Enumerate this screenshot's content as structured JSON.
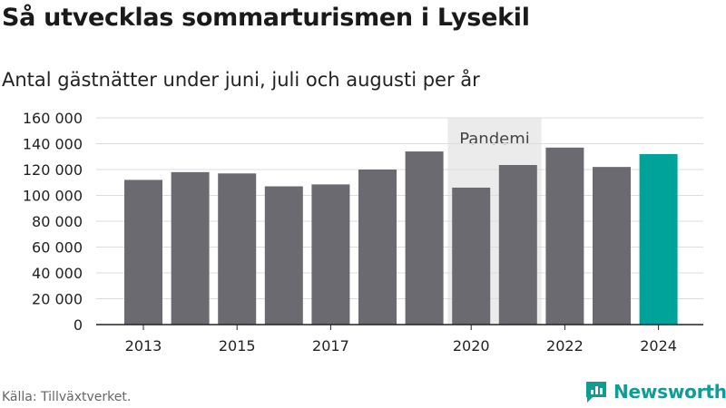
{
  "title": "Så utvecklas sommarturismen i Lysekil",
  "subtitle": "Antal gästnätter under juni, juli och augusti per år",
  "source": "Källa: Tillväxtverket.",
  "brand": {
    "name": "Newsworthy",
    "icon": "newsworthy-logo-icon",
    "color": "#0e9c94"
  },
  "colors": {
    "bar": "#6b6a70",
    "highlight": "#00a39a",
    "pandemic_band": "#ebebeb",
    "grid": "#dddddd",
    "axis": "#222222"
  },
  "chart_data": {
    "type": "bar",
    "categories": [
      "2013",
      "2014",
      "2015",
      "2016",
      "2017",
      "2018",
      "2019",
      "2020",
      "2021",
      "2022",
      "2023",
      "2024"
    ],
    "tick_labels": [
      "2013",
      "",
      "2015",
      "",
      "2017",
      "",
      "",
      "2020",
      "",
      "2022",
      "",
      "2024"
    ],
    "values": [
      112000,
      118000,
      117000,
      107000,
      108500,
      120000,
      134000,
      106000,
      123500,
      137000,
      122000,
      132000
    ],
    "highlight_category": "2024",
    "ylim": [
      0,
      160000
    ],
    "yticks": [
      0,
      20000,
      40000,
      60000,
      80000,
      100000,
      120000,
      140000,
      160000
    ],
    "ytick_labels": [
      "0",
      "20 000",
      "40 000",
      "60 000",
      "80 000",
      "100 000",
      "120 000",
      "140 000",
      "160 000"
    ],
    "grid": true,
    "annotation": {
      "label": "Pandemi",
      "from_category": "2020",
      "to_category": "2021"
    }
  }
}
